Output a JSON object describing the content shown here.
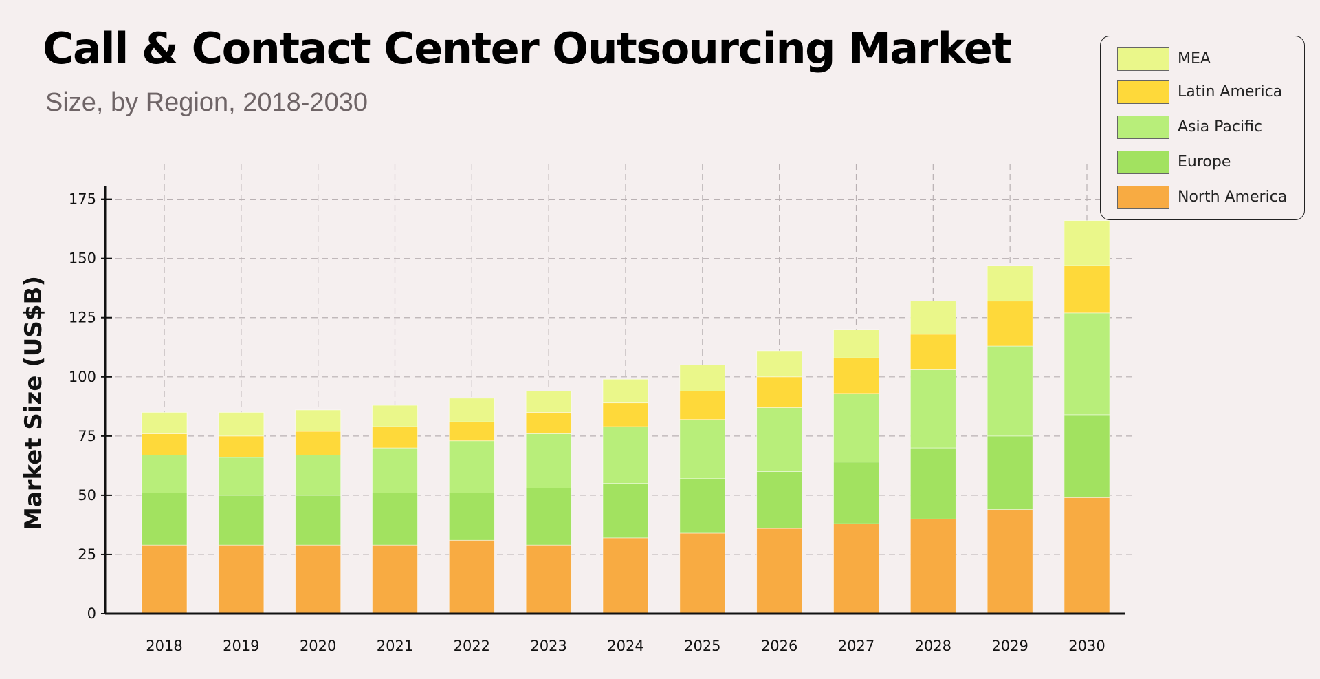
{
  "chart_data": {
    "type": "bar",
    "stacked": true,
    "title": "Call & Contact Center Outsourcing Market",
    "subtitle": "Size, by Region, 2018-2030",
    "xlabel": "",
    "ylabel": "Market Size (US$B)",
    "ylim": [
      0,
      190
    ],
    "yticks": [
      0,
      25,
      50,
      75,
      100,
      125,
      150,
      175
    ],
    "grid": true,
    "legend_position": "top-right",
    "categories": [
      "2018",
      "2019",
      "2020",
      "2021",
      "2022",
      "2023",
      "2024",
      "2025",
      "2026",
      "2027",
      "2028",
      "2029",
      "2030"
    ],
    "series": [
      {
        "name": "North America",
        "color": "#f8ab42",
        "values": [
          29,
          29,
          29,
          29,
          31,
          29,
          32,
          34,
          36,
          38,
          40,
          44,
          49
        ]
      },
      {
        "name": "Europe",
        "color": "#a2e260",
        "values": [
          22,
          21,
          21,
          22,
          20,
          24,
          23,
          23,
          24,
          26,
          30,
          31,
          35
        ]
      },
      {
        "name": "Asia Pacific",
        "color": "#b8ee7a",
        "values": [
          16,
          16,
          17,
          19,
          22,
          23,
          24,
          25,
          27,
          29,
          33,
          38,
          43
        ]
      },
      {
        "name": "Latin America",
        "color": "#fed93a",
        "values": [
          9,
          9,
          10,
          9,
          8,
          9,
          10,
          12,
          13,
          15,
          15,
          19,
          20
        ]
      },
      {
        "name": "MEA",
        "color": "#eaf78a",
        "values": [
          9,
          10,
          9,
          9,
          10,
          9,
          10,
          11,
          11,
          12,
          14,
          15,
          19
        ]
      }
    ]
  },
  "legend": {
    "items": [
      {
        "label": "MEA",
        "color": "#eaf78a"
      },
      {
        "label": "Latin America",
        "color": "#fed93a"
      },
      {
        "label": "Asia Pacific",
        "color": "#b8ee7a"
      },
      {
        "label": "Europe",
        "color": "#a2e260"
      },
      {
        "label": "North America",
        "color": "#f8ab42"
      }
    ]
  }
}
